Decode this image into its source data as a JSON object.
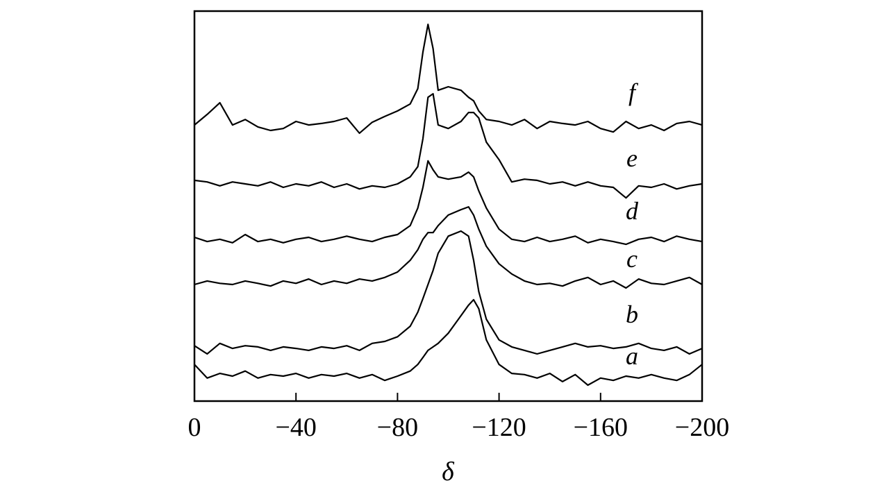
{
  "chart_data": {
    "type": "line",
    "x_label": "δ",
    "xlim": [
      0,
      -200
    ],
    "ylim": [
      0,
      100
    ],
    "xticks": [
      0,
      {
        "value": -40,
        "label": "−40"
      },
      {
        "value": -80,
        "label": "−80"
      },
      {
        "value": -120,
        "label": "−120"
      },
      {
        "value": -160,
        "label": "−160"
      },
      {
        "value": -200,
        "label": "−200"
      }
    ],
    "x": [
      0,
      -5,
      -10,
      -15,
      -20,
      -25,
      -30,
      -35,
      -40,
      -45,
      -50,
      -55,
      -60,
      -65,
      -70,
      -75,
      -80,
      -85,
      -88,
      -90,
      -92,
      -94,
      -96,
      -100,
      -105,
      -108,
      -110,
      -112,
      -115,
      -120,
      -125,
      -130,
      -135,
      -140,
      -145,
      -150,
      -155,
      -160,
      -165,
      -170,
      -175,
      -180,
      -185,
      -190,
      -195,
      -200
    ],
    "series": [
      {
        "name": "a",
        "color": "#000000",
        "values": [
          9.4,
          5.9,
          7.1,
          6.4,
          7.7,
          5.9,
          6.8,
          6.4,
          7.1,
          5.9,
          6.8,
          6.4,
          7.1,
          5.9,
          6.8,
          5.3,
          6.4,
          7.7,
          9.4,
          11.2,
          13.0,
          13.9,
          14.8,
          17.4,
          21.9,
          24.6,
          26.0,
          23.7,
          15.7,
          9.4,
          7.1,
          6.8,
          5.9,
          7.1,
          5.0,
          6.8,
          4.1,
          5.9,
          5.3,
          6.4,
          5.9,
          6.8,
          5.9,
          5.3,
          6.8,
          9.4
        ]
      },
      {
        "name": "b",
        "color": "#000000",
        "values": [
          14.2,
          12.1,
          14.8,
          13.5,
          14.2,
          13.9,
          13.0,
          13.9,
          13.5,
          13.0,
          13.9,
          13.5,
          14.2,
          13.0,
          14.8,
          15.3,
          16.5,
          19.2,
          22.8,
          26.3,
          29.9,
          33.5,
          37.9,
          42.3,
          43.6,
          42.3,
          36.1,
          28.1,
          21.0,
          15.7,
          13.9,
          13.0,
          12.1,
          13.0,
          13.9,
          14.8,
          13.9,
          14.2,
          13.5,
          13.9,
          14.8,
          13.5,
          13.0,
          13.9,
          12.1,
          13.5
        ]
      },
      {
        "name": "c",
        "color": "#000000",
        "values": [
          29.9,
          30.8,
          30.2,
          29.9,
          30.8,
          30.2,
          29.5,
          30.8,
          30.2,
          31.3,
          29.9,
          30.8,
          30.2,
          31.3,
          30.8,
          31.7,
          33.1,
          36.1,
          38.8,
          41.5,
          43.2,
          43.2,
          45.0,
          47.7,
          49.1,
          49.8,
          47.7,
          44.1,
          39.7,
          35.2,
          32.6,
          30.8,
          29.9,
          30.2,
          29.5,
          30.8,
          31.7,
          29.9,
          30.8,
          29.0,
          31.3,
          30.2,
          29.9,
          30.8,
          31.7,
          29.9
        ]
      },
      {
        "name": "d",
        "color": "#000000",
        "values": [
          42.0,
          40.9,
          41.5,
          40.6,
          42.7,
          40.9,
          41.5,
          40.6,
          41.5,
          42.0,
          40.9,
          41.5,
          42.3,
          41.5,
          40.9,
          42.0,
          42.7,
          45.0,
          49.5,
          54.8,
          61.6,
          59.3,
          57.5,
          56.9,
          57.5,
          58.7,
          57.5,
          53.9,
          49.5,
          44.1,
          41.5,
          40.9,
          42.0,
          40.9,
          41.5,
          42.3,
          40.6,
          41.5,
          40.9,
          40.2,
          41.5,
          42.0,
          40.9,
          42.3,
          41.5,
          40.9
        ]
      },
      {
        "name": "e",
        "color": "#000000",
        "values": [
          56.6,
          56.2,
          55.2,
          56.2,
          55.7,
          55.2,
          56.2,
          54.8,
          55.7,
          55.2,
          56.2,
          54.8,
          55.7,
          54.4,
          55.2,
          54.8,
          55.7,
          57.5,
          60.1,
          67.3,
          77.9,
          78.8,
          70.8,
          69.9,
          71.7,
          74.0,
          74.0,
          72.6,
          66.4,
          61.9,
          56.2,
          56.9,
          56.6,
          55.7,
          56.2,
          55.2,
          56.2,
          55.2,
          54.8,
          52.1,
          55.2,
          54.8,
          55.7,
          54.4,
          55.2,
          55.7
        ]
      },
      {
        "name": "f",
        "color": "#000000",
        "values": [
          70.8,
          73.5,
          76.5,
          70.8,
          72.2,
          70.3,
          69.4,
          69.9,
          71.7,
          70.8,
          71.2,
          71.7,
          72.6,
          68.7,
          71.5,
          73.0,
          74.4,
          76.2,
          80.1,
          89.5,
          96.6,
          90.4,
          79.7,
          80.6,
          79.7,
          77.9,
          77.0,
          74.4,
          72.2,
          71.7,
          70.8,
          72.2,
          69.9,
          71.7,
          71.2,
          70.8,
          71.7,
          69.9,
          69.0,
          71.7,
          69.9,
          70.8,
          69.4,
          71.2,
          71.7,
          70.8
        ]
      }
    ]
  }
}
